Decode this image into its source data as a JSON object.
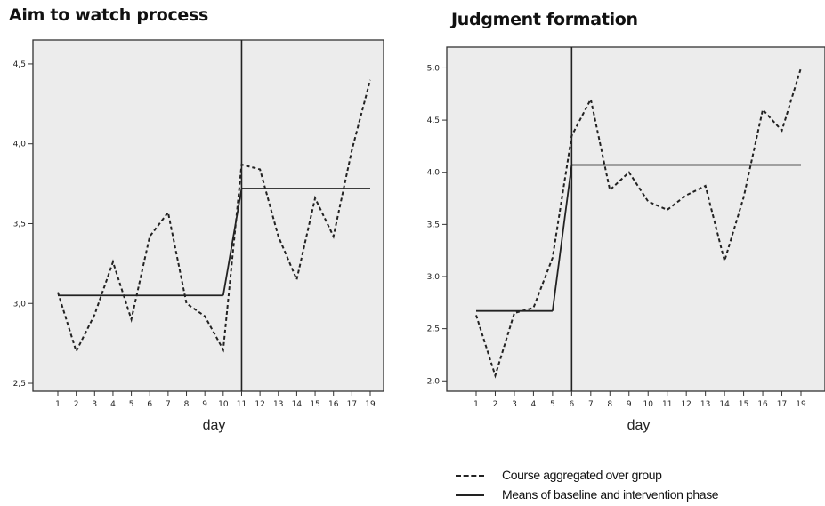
{
  "chart_data": [
    {
      "type": "line",
      "title": "Aim to watch process",
      "xlabel": "day",
      "x": [
        1,
        2,
        3,
        4,
        5,
        6,
        7,
        8,
        9,
        10,
        11,
        12,
        13,
        14,
        15,
        16,
        17,
        19
      ],
      "x_tick_labels": [
        "1",
        "2",
        "3",
        "4",
        "5",
        "6",
        "7",
        "8",
        "9",
        "10",
        "11",
        "12",
        "13",
        "14",
        "15",
        "16",
        "17",
        "19"
      ],
      "ylim": [
        2.45,
        4.65
      ],
      "y_ticks": [
        2.5,
        3.0,
        3.5,
        4.0,
        4.5
      ],
      "y_tick_labels": [
        "2,5",
        "3,0",
        "3,5",
        "4,0",
        "4,5"
      ],
      "phase_change_x": 11,
      "series": [
        {
          "name": "Course aggregated over group",
          "style": "dashed",
          "values": [
            3.07,
            2.7,
            2.93,
            3.26,
            2.9,
            3.42,
            3.57,
            3.0,
            2.92,
            2.71,
            3.87,
            3.84,
            3.42,
            3.15,
            3.66,
            3.42,
            3.96,
            4.4
          ]
        },
        {
          "name": "Means of baseline and intervention phase",
          "style": "solid",
          "segments": [
            {
              "x": [
                1,
                10
              ],
              "y": [
                3.05,
                3.05
              ]
            },
            {
              "x": [
                10,
                11
              ],
              "y": [
                3.05,
                3.72
              ]
            },
            {
              "x": [
                11,
                19
              ],
              "y": [
                3.72,
                3.72
              ]
            }
          ]
        }
      ],
      "grid": false,
      "background": "#ececec"
    },
    {
      "type": "line",
      "title": "Judgment formation",
      "xlabel": "day",
      "x": [
        1,
        2,
        3,
        4,
        5,
        6,
        7,
        8,
        9,
        10,
        11,
        12,
        13,
        14,
        15,
        16,
        17,
        19
      ],
      "x_tick_labels": [
        "1",
        "2",
        "3",
        "4",
        "5",
        "6",
        "7",
        "8",
        "9",
        "10",
        "11",
        "12",
        "13",
        "14",
        "15",
        "16",
        "17",
        "19"
      ],
      "ylim": [
        1.9,
        5.2
      ],
      "y_ticks": [
        2.0,
        2.5,
        3.0,
        3.5,
        4.0,
        4.5,
        5.0
      ],
      "y_tick_labels": [
        "2,0",
        "2,5",
        "3,0",
        "3,5",
        "4,0",
        "4,5",
        "5,0"
      ],
      "phase_change_x": 6,
      "series": [
        {
          "name": "Course aggregated over group",
          "style": "dashed",
          "values": [
            2.63,
            2.05,
            2.65,
            2.7,
            3.18,
            4.35,
            4.7,
            3.83,
            4.0,
            3.72,
            3.64,
            3.78,
            3.87,
            3.15,
            3.76,
            4.6,
            4.4,
            5.0
          ]
        },
        {
          "name": "Means of baseline and intervention phase",
          "style": "solid",
          "segments": [
            {
              "x": [
                1,
                5
              ],
              "y": [
                2.67,
                2.67
              ]
            },
            {
              "x": [
                5,
                6
              ],
              "y": [
                2.67,
                4.07
              ]
            },
            {
              "x": [
                6,
                19
              ],
              "y": [
                4.07,
                4.07
              ]
            }
          ]
        }
      ],
      "grid": false,
      "background": "#ececec"
    }
  ],
  "legend": {
    "dashed_label": "Course aggregated over group",
    "solid_label": "Means of baseline and intervention phase"
  }
}
